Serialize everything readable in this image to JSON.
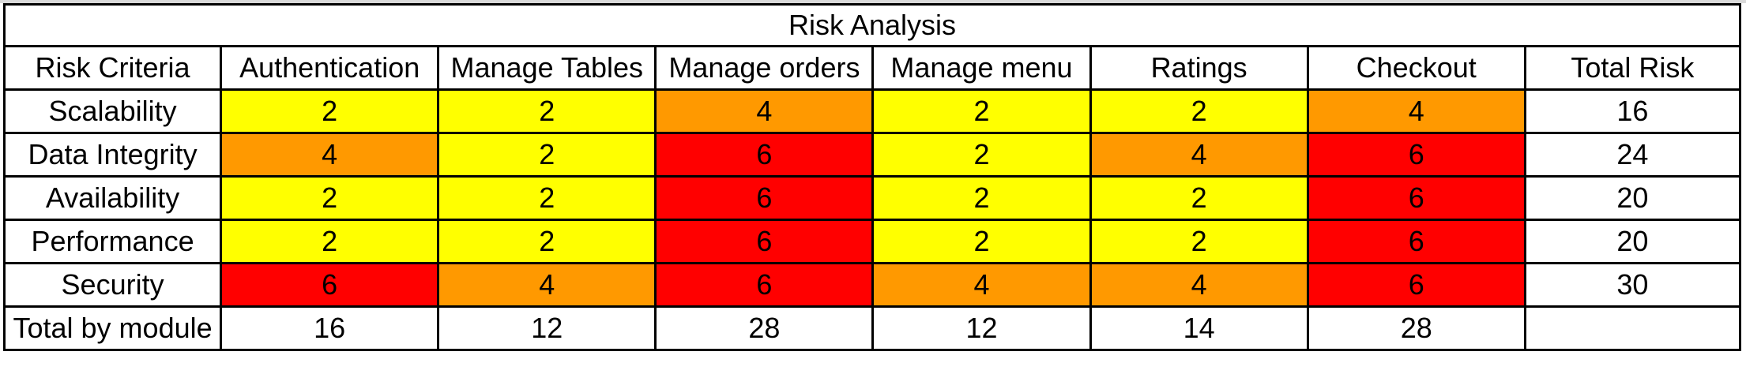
{
  "title": "Risk Analysis",
  "header": {
    "criteria_label": "Risk Criteria",
    "modules": [
      "Authentication",
      "Manage Tables",
      "Manage orders",
      "Manage menu",
      "Ratings",
      "Checkout"
    ],
    "total_label": "Total Risk"
  },
  "rows": [
    {
      "criterion": "Scalability",
      "values": [
        2,
        2,
        4,
        2,
        2,
        4
      ],
      "total": 16
    },
    {
      "criterion": "Data Integrity",
      "values": [
        4,
        2,
        6,
        2,
        4,
        6
      ],
      "total": 24
    },
    {
      "criterion": "Availability",
      "values": [
        2,
        2,
        6,
        2,
        2,
        6
      ],
      "total": 20
    },
    {
      "criterion": "Performance",
      "values": [
        2,
        2,
        6,
        2,
        2,
        6
      ],
      "total": 20
    },
    {
      "criterion": "Security",
      "values": [
        6,
        4,
        6,
        4,
        4,
        6
      ],
      "total": 30
    }
  ],
  "footer": {
    "label": "Total by module",
    "values": [
      16,
      12,
      28,
      12,
      14,
      28
    ]
  },
  "colors": {
    "risk_2": "#ffff00",
    "risk_4": "#ff9900",
    "risk_6": "#ff0000",
    "grid": "#000000"
  }
}
